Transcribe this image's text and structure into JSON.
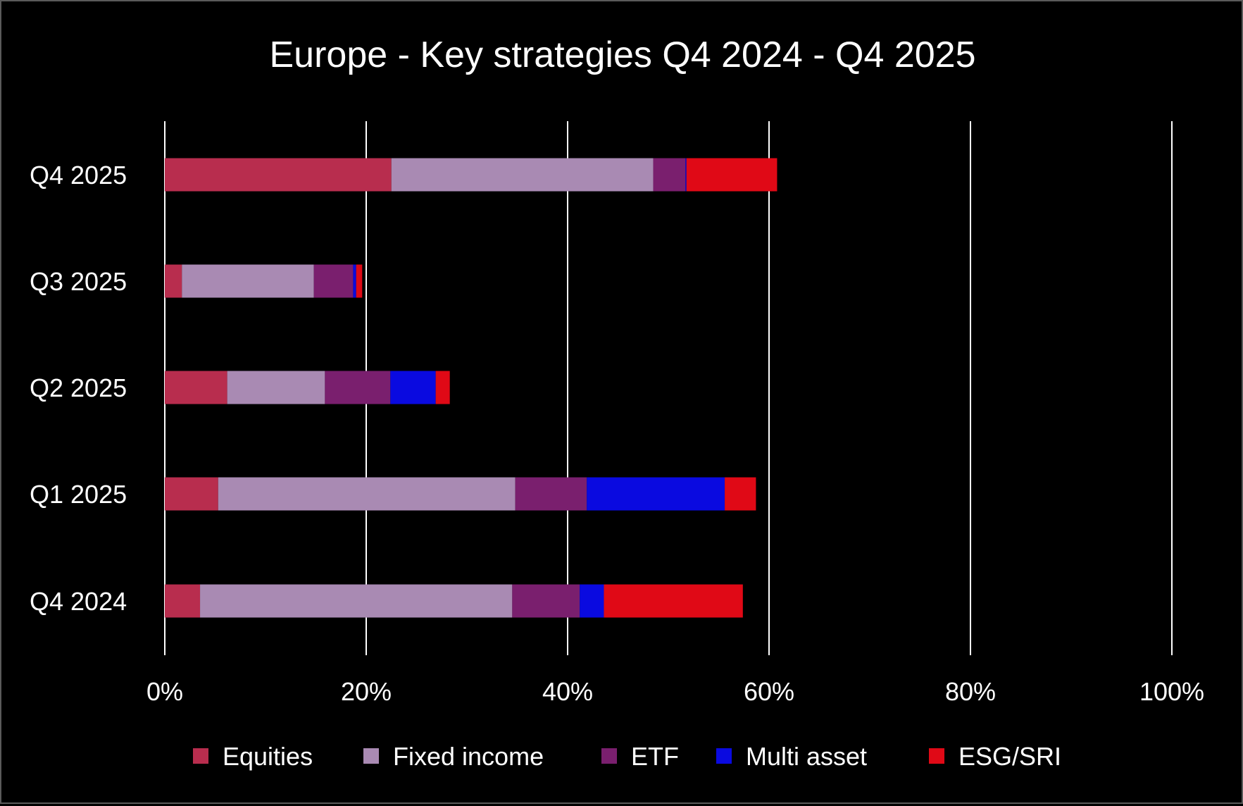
{
  "chart_data": {
    "type": "bar",
    "orientation": "horizontal",
    "stacked": true,
    "title": "Europe - Key strategies Q4 2024 - Q4 2025",
    "xlabel": "",
    "ylabel": "",
    "categories": [
      "Q4 2025",
      "Q3 2025",
      "Q2 2025",
      "Q1 2025",
      "Q4 2024"
    ],
    "xlim": [
      0,
      100
    ],
    "x_ticks": [
      "0%",
      "20%",
      "40%",
      "60%",
      "80%",
      "100%"
    ],
    "x_tick_values": [
      0,
      20,
      40,
      60,
      80,
      100
    ],
    "grid": "vertical",
    "legend_position": "bottom",
    "series": [
      {
        "name": "Equities",
        "color": "#B82D4E",
        "values": [
          22.5,
          1.7,
          6.2,
          5.3,
          3.5
        ]
      },
      {
        "name": "Fixed income",
        "color": "#A98AB3",
        "values": [
          26.0,
          13.1,
          9.7,
          29.5,
          31.0
        ]
      },
      {
        "name": "ETF",
        "color": "#7A1F6E",
        "values": [
          3.2,
          3.9,
          6.5,
          7.1,
          6.7
        ]
      },
      {
        "name": "Multi asset",
        "color": "#0A0AE0",
        "values": [
          0.1,
          0.3,
          4.5,
          13.7,
          2.4
        ]
      },
      {
        "name": "ESG/SRI",
        "color": "#E00916",
        "values": [
          9.0,
          0.6,
          1.4,
          3.1,
          13.8
        ]
      }
    ]
  },
  "colors": {
    "background": "#000000",
    "text": "#FFFFFF",
    "gridline": "#FFFFFF"
  }
}
